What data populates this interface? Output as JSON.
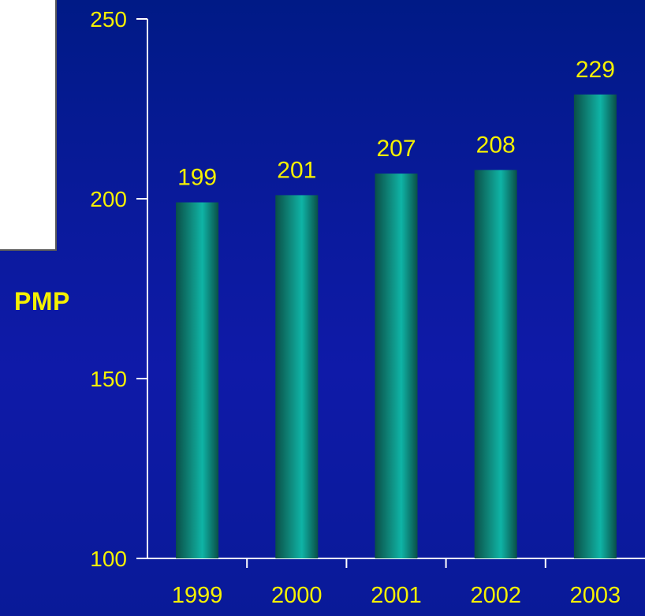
{
  "chart_data": {
    "type": "bar",
    "categories": [
      "1999",
      "2000",
      "2001",
      "2002",
      "2003"
    ],
    "values": [
      199,
      201,
      207,
      208,
      229
    ],
    "ylabel": "PMP",
    "ylim": [
      100,
      250
    ],
    "yticks": [
      100,
      150,
      200,
      250
    ],
    "grid": false,
    "colors": {
      "text": "#f6f100",
      "axis": "#ffffff",
      "bar_dark": "#0a4f47",
      "bar_mid": "#0f8d80",
      "bar_light": "#0fb4a6"
    }
  }
}
